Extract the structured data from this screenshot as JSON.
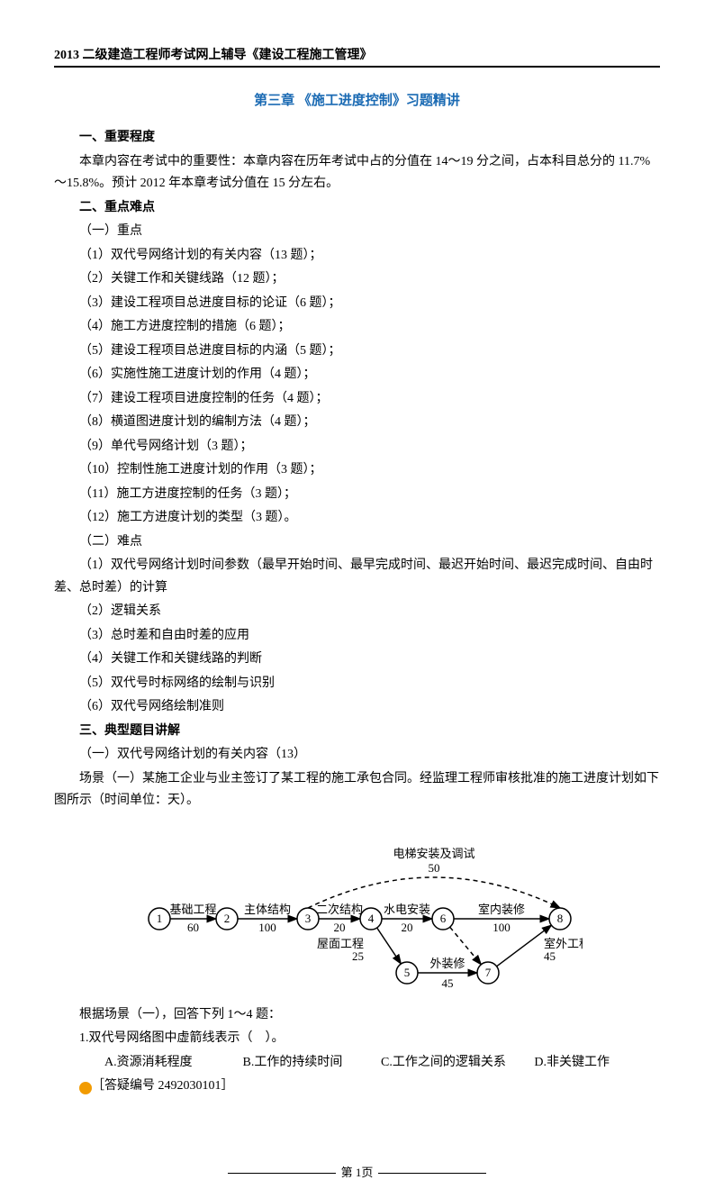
{
  "header": "2013 二级建造工程师考试网上辅导《建设工程施工管理》",
  "chapterTitle": "第三章   《施工进度控制》习题精讲",
  "section1": {
    "heading": "一、重要程度",
    "body": "本章内容在考试中的重要性：本章内容在历年考试中占的分值在 14～19 分之间，占本科目总分的 11.7%～15.8%。预计 2012 年本章考试分值在 15 分左右。"
  },
  "section2": {
    "heading": "二、重点难点",
    "a": {
      "title": "（一）重点",
      "items": [
        "（1）双代号网络计划的有关内容（13 题）；",
        "（2）关键工作和关键线路（12 题）；",
        "（3）建设工程项目总进度目标的论证（6 题）；",
        "（4）施工方进度控制的措施（6 题）；",
        "（5）建设工程项目总进度目标的内涵（5 题）；",
        "（6）实施性施工进度计划的作用（4 题）；",
        "（7）建设工程项目进度控制的任务（4 题）；",
        "（8）横道图进度计划的编制方法（4 题）；",
        "（9）单代号网络计划（3 题）；",
        "（10）控制性施工进度计划的作用（3 题）；",
        "（11）施工方进度控制的任务（3 题）；",
        "（12）施工方进度计划的类型（3 题）。"
      ]
    },
    "b": {
      "title": "（二）难点",
      "items": [
        "（1）双代号网络计划时间参数（最早开始时间、最早完成时间、最迟开始时间、最迟完成时间、自由时差、总时差）的计算",
        "（2）逻辑关系",
        "（3）总时差和自由时差的应用",
        "（4）关键工作和关键线路的判断",
        "（5）双代号时标网络的绘制与识别",
        "（6）双代号网络绘制准则"
      ]
    }
  },
  "section3": {
    "heading": "三、典型题目讲解",
    "subheading": "（一）双代号网络计划的有关内容（13）",
    "scenarioPrefix": "场景（一）某施工企业与业主签订了某工程的施工承包合同。经监理工程师审核批准的施工进度计划如下图所示（时间单位：天）。"
  },
  "diagram": {
    "topArc": {
      "label": "电梯安装及调试",
      "value": "50"
    },
    "nodes": [
      "1",
      "2",
      "3",
      "4",
      "5",
      "6",
      "7",
      "8"
    ],
    "edges": [
      {
        "from": "1",
        "to": "2",
        "label": "基础工程",
        "value": "60"
      },
      {
        "from": "2",
        "to": "3",
        "label": "主体结构",
        "value": "100"
      },
      {
        "from": "3",
        "to": "4",
        "label": "二次结构",
        "value": "20"
      },
      {
        "from": "4",
        "to": "6",
        "label": "水电安装",
        "value": "20"
      },
      {
        "from": "6",
        "to": "8",
        "label": "室内装修",
        "value": "100"
      },
      {
        "from": "4",
        "to": "5",
        "label": "屋面工程",
        "value": "25"
      },
      {
        "from": "5",
        "to": "7",
        "label": "外装修",
        "value": "45"
      },
      {
        "from": "7",
        "to": "8",
        "label": "室外工程",
        "value": "45"
      }
    ],
    "dashed": [
      {
        "from": "3",
        "to": "8"
      },
      {
        "from": "6",
        "to": "7"
      }
    ],
    "node_radius": 12,
    "stroke": "#000000",
    "dash_pattern": "5,4",
    "fill": "#ffffff"
  },
  "questionsIntro": "根据场景（一），回答下列 1～4 题：",
  "q1": {
    "stem": "1.双代号网络图中虚箭线表示（　）。",
    "opts": {
      "A": "A.资源消耗程度",
      "B": "B.工作的持续时间",
      "C": "C.工作之间的逻辑关系",
      "D": "D.非关键工作"
    },
    "answerId": "［答疑编号 2492030101］"
  },
  "footer": "第 1页"
}
